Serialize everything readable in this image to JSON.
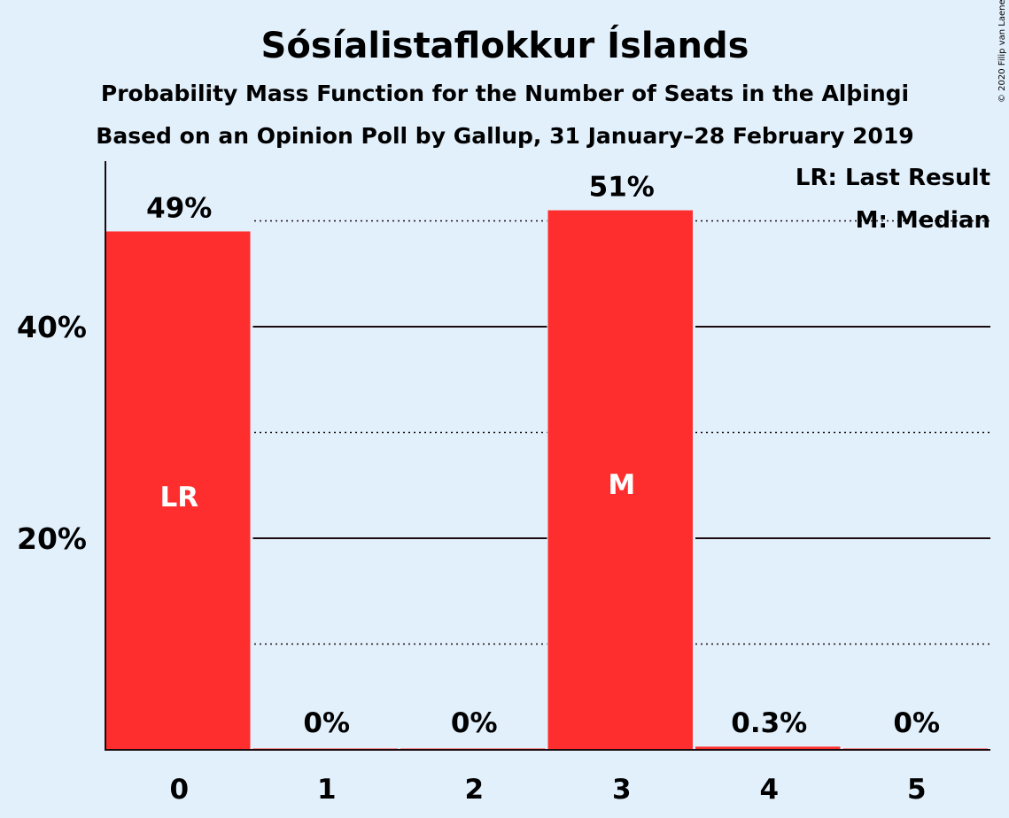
{
  "chart_data": {
    "type": "bar",
    "title": "Sósíalistaflokkur Íslands",
    "subtitle": "Probability Mass Function for the Number of Seats in the Alþingi",
    "subtitle2": "Based on an Opinion Poll by Gallup, 31 January–28 February 2019",
    "categories": [
      "0",
      "1",
      "2",
      "3",
      "4",
      "5"
    ],
    "values": [
      49,
      0,
      0,
      51,
      0.3,
      0
    ],
    "data_labels": [
      "49%",
      "0%",
      "0%",
      "51%",
      "0.3%",
      "0%"
    ],
    "bar_markers": [
      "LR",
      "",
      "",
      "M",
      "",
      ""
    ],
    "ylim": [
      0,
      56
    ],
    "y_ticks": [
      {
        "value": 20,
        "label": "20%"
      },
      {
        "value": 40,
        "label": "40%"
      }
    ],
    "minor_gridlines": [
      10,
      30,
      50
    ],
    "last_result_line": 50,
    "legend": [
      "LR: Last Result",
      "M: Median"
    ],
    "legend_position": "top-right",
    "bar_color": "#ff2e2e",
    "background_color": "#e2f0fc",
    "copyright": "© 2020 Filip van Laenen"
  }
}
